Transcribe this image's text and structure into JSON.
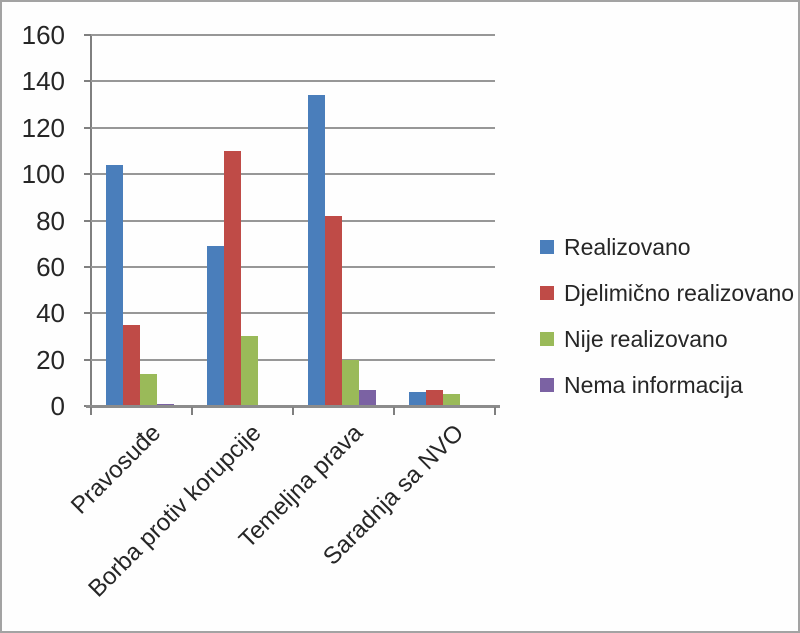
{
  "chart_data": {
    "type": "bar",
    "title": "",
    "xlabel": "",
    "ylabel": "",
    "categories": [
      "Pravosuđe",
      "Borba protiv korupcije",
      "Temeljna prava",
      "Saradnja sa NVO"
    ],
    "series": [
      {
        "name": "Realizovano",
        "color": "#4a7ebb",
        "values": [
          104,
          69,
          134,
          6
        ]
      },
      {
        "name": "Djelimično realizovano",
        "color": "#bf4b47",
        "values": [
          35,
          110,
          82,
          7
        ]
      },
      {
        "name": "Nije realizovano",
        "color": "#9aba59",
        "values": [
          14,
          30,
          20,
          5
        ]
      },
      {
        "name": "Nema informacija",
        "color": "#7b62a3",
        "values": [
          1,
          0,
          7,
          0
        ]
      }
    ],
    "ylim": [
      0,
      160
    ],
    "ytick_step": 20,
    "ytick_labels": [
      "0",
      "20",
      "40",
      "60",
      "80",
      "100",
      "120",
      "140",
      "160"
    ],
    "grid": true,
    "legend_position": "right"
  },
  "colors": {
    "background": "#fefefe",
    "border": "#a3a3a3",
    "gridline": "#979797",
    "axis": "#7f7f7f",
    "text": "#262626"
  }
}
